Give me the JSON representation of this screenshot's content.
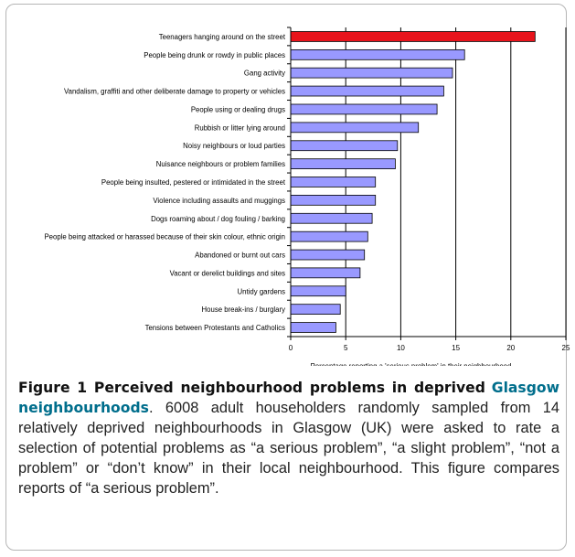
{
  "chart_data": {
    "type": "bar",
    "orientation": "horizontal",
    "categories": [
      "Teenagers hanging around on the street",
      "People being drunk or rowdy in public places",
      "Gang activity",
      "Vandalism, graffiti and other deliberate damage to property or vehicles",
      "People using or dealing drugs",
      "Rubbish or litter lying around",
      "Noisy neighbours or loud parties",
      "Nuisance neighbours or problem families",
      "People being insulted, pestered or intimidated in the street",
      "Violence including assaults and muggings",
      "Dogs roaming about / dog fouling / barking",
      "People being attacked or harassed because of their skin colour, ethnic origin",
      "Abandoned or burnt out cars",
      "Vacant or derelict buildings and sites",
      "Untidy gardens",
      "House break-ins / burglary",
      "Tensions between Protestants and Catholics"
    ],
    "values": [
      22.2,
      15.8,
      14.7,
      13.9,
      13.3,
      11.6,
      9.7,
      9.5,
      7.7,
      7.7,
      7.4,
      7.0,
      6.7,
      6.3,
      5.0,
      4.5,
      4.1
    ],
    "highlight_index": 0,
    "highlight_color": "#e8141c",
    "bar_color": "#9999ff",
    "xlabel": "Percentage reporting a 'serious problem' in their neighbourhood",
    "ylabel": "",
    "xlim": [
      0,
      25
    ],
    "xticks": [
      "0",
      "5",
      "10",
      "15",
      "20",
      "25"
    ],
    "grid": "vertical"
  },
  "caption": {
    "title_part1": "Figure 1 Perceived neighbourhood problems in deprived",
    "title_part2": "Glasgow neighbourhoods",
    "body": ". 6008 adult householders randomly sampled from 14 relatively deprived neighbourhoods in Glasgow (UK) were asked to rate a selection of potential problems as “a serious problem”, “a slight problem”, “not a problem” or “don’t know” in their local neighbourhood. This figure compares reports of “a serious problem”."
  }
}
